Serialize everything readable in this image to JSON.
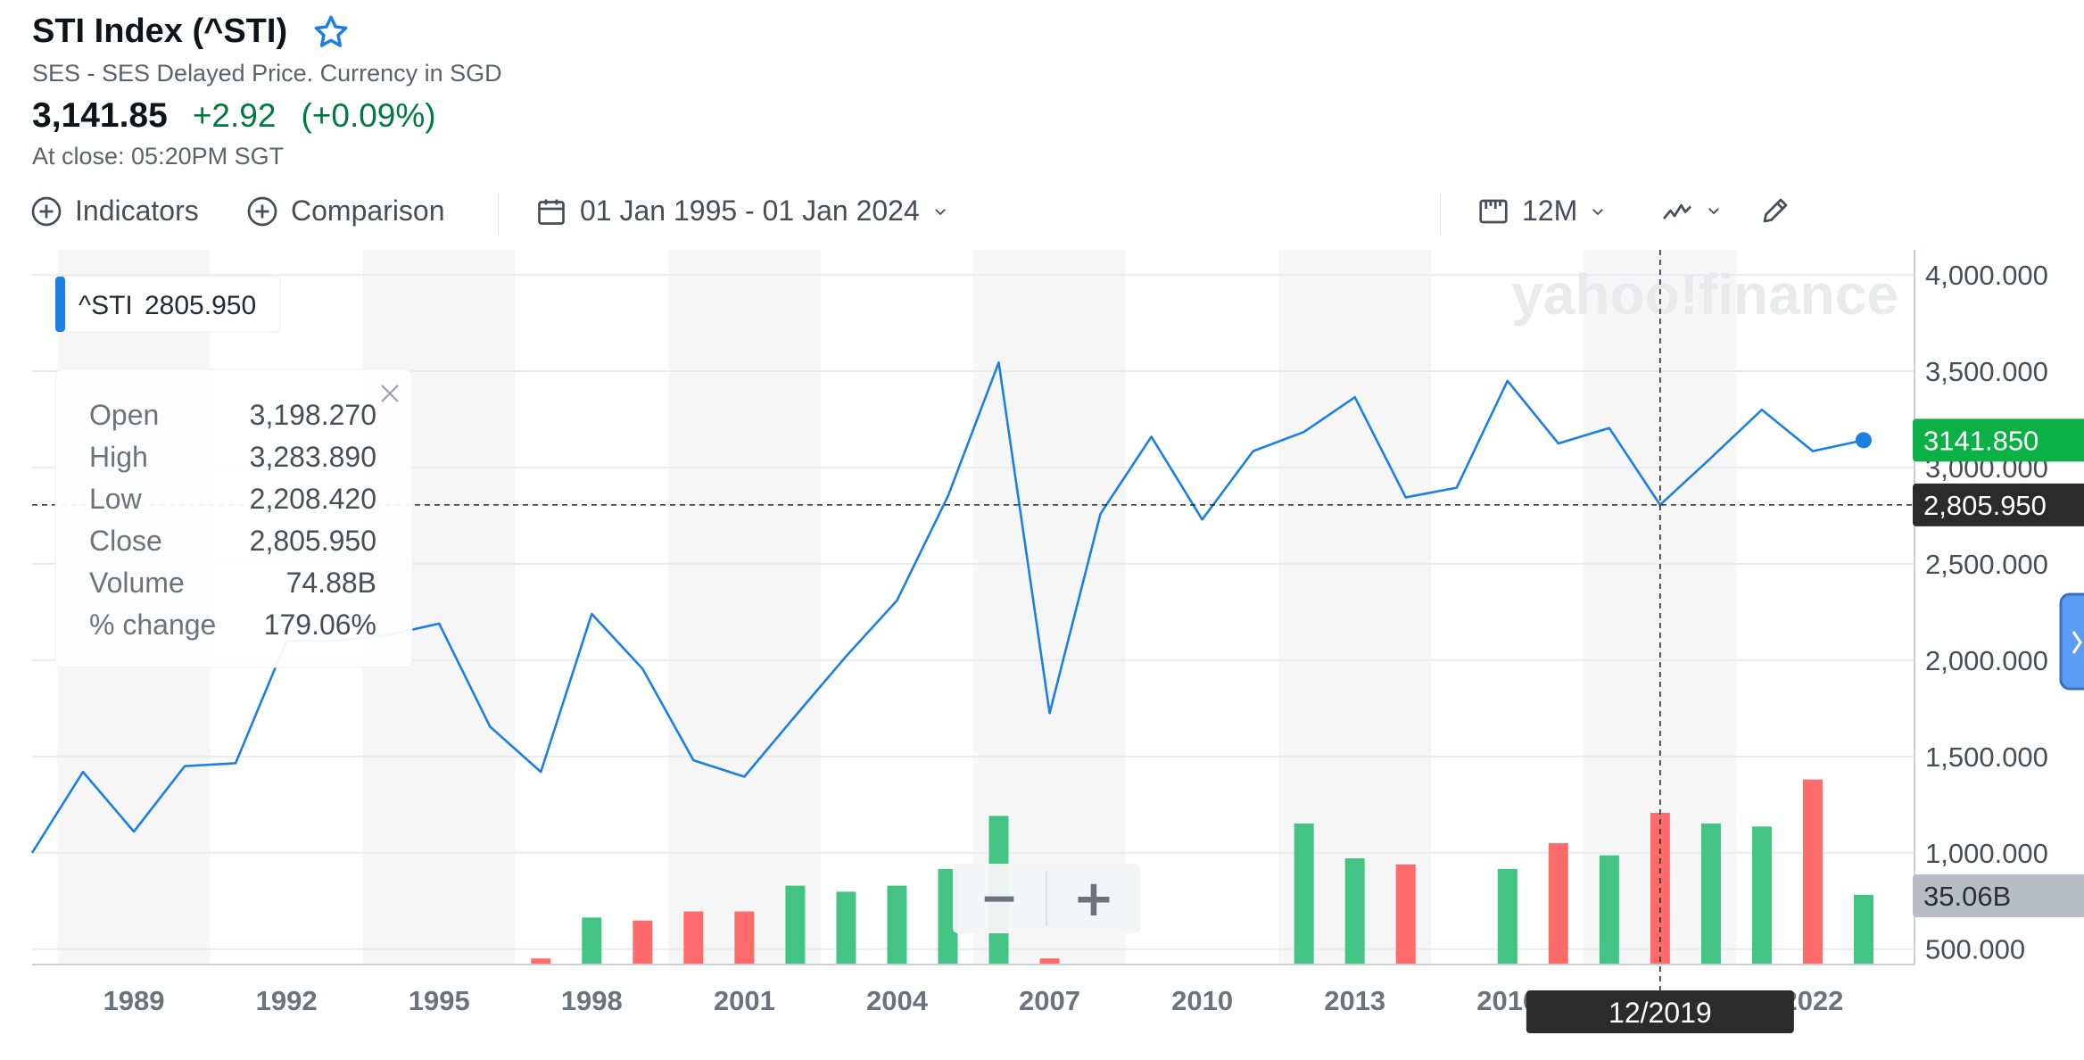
{
  "header": {
    "title": "STI Index (^STI)",
    "subtitle": "SES - SES Delayed Price. Currency in SGD",
    "price": "3,141.85",
    "change": "+2.92",
    "change_pct": "(+0.09%)",
    "close_time": "At close: 05:20PM SGT"
  },
  "toolbar": {
    "indicators_label": "Indicators",
    "comparison_label": "Comparison",
    "date_range_label": "01 Jan 1995 - 01 Jan 2024",
    "interval_label": "12M"
  },
  "colors": {
    "line": "#1b7fe3",
    "up": "#43c484",
    "down": "#ff6b6b",
    "current_badge": "#0bb047",
    "crosshair_badge": "#2b2b2b",
    "volume_badge": "#b8bcc4"
  },
  "legend": {
    "symbol": "^STI",
    "value": "2805.950"
  },
  "tooltip": {
    "rows": [
      {
        "label": "Open",
        "value": "3,198.270"
      },
      {
        "label": "High",
        "value": "3,283.890"
      },
      {
        "label": "Low",
        "value": "2,208.420"
      },
      {
        "label": "Close",
        "value": "2,805.950"
      },
      {
        "label": "Volume",
        "value": "74.88B"
      },
      {
        "label": "% change",
        "value": "179.06%"
      }
    ]
  },
  "badges": {
    "current": "3141.850",
    "crosshair": "2,805.950",
    "volume": "35.06B",
    "crosshair_date": "12/2019"
  },
  "watermark": "yahoo!finance",
  "zoom": {
    "minus": "−",
    "plus": "+"
  },
  "chart_data": {
    "type": "line",
    "x_tick_labels": [
      "1989",
      "1992",
      "1995",
      "1998",
      "2001",
      "2004",
      "2007",
      "2010",
      "2013",
      "2016",
      "2019",
      "2022"
    ],
    "y_tick_labels": [
      "4,000.000",
      "3,500.000",
      "3,000.000",
      "2,500.000",
      "2,000.000",
      "1,500.000",
      "1,000.000",
      "500.000"
    ],
    "ylim": [
      420,
      4130
    ],
    "xlim": [
      1987.0,
      2024.0
    ],
    "series": [
      {
        "x": [
          1987.0,
          1988.0,
          1989.0,
          1990.0,
          1991.0,
          1992.0,
          1993.0,
          1994.0,
          1995.0,
          1996.0,
          1997.0,
          1998.0,
          1999.0,
          2000.0,
          2001.0,
          2002.0,
          2003.0,
          2004.0,
          2005.0,
          2006.0,
          2007.0,
          2008.0,
          2009.0,
          2010.0,
          2011.0,
          2012.0,
          2013.0,
          2014.0,
          2015.0,
          2016.0,
          2017.0,
          2018.0,
          2019.0,
          2020.0,
          2021.0,
          2022.0,
          2023.0
        ],
        "values": [
          1000,
          1420,
          1110,
          1450,
          1465,
          2100,
          2100,
          2130,
          2190,
          1655,
          1420,
          2240,
          1955,
          1480,
          1395,
          1710,
          2020,
          2310,
          2850,
          3545,
          1725,
          2760,
          3160,
          2730,
          3085,
          3185,
          3365,
          2845,
          2895,
          3450,
          3125,
          3205,
          2806,
          3050,
          3300,
          3085,
          3141.85
        ]
      }
    ],
    "volume_bars": [
      {
        "x": 1997.0,
        "value": 0.04,
        "dir": "down"
      },
      {
        "x": 1998.0,
        "value": 0.31,
        "dir": "up"
      },
      {
        "x": 1999.0,
        "value": 0.29,
        "dir": "down"
      },
      {
        "x": 2000.0,
        "value": 0.35,
        "dir": "down"
      },
      {
        "x": 2001.0,
        "value": 0.35,
        "dir": "down"
      },
      {
        "x": 2002.0,
        "value": 0.52,
        "dir": "up"
      },
      {
        "x": 2003.0,
        "value": 0.48,
        "dir": "up"
      },
      {
        "x": 2004.0,
        "value": 0.52,
        "dir": "up"
      },
      {
        "x": 2005.0,
        "value": 0.63,
        "dir": "up"
      },
      {
        "x": 2006.0,
        "value": 0.98,
        "dir": "up"
      },
      {
        "x": 2007.0,
        "value": 0.04,
        "dir": "down"
      },
      {
        "x": 2012.0,
        "value": 0.93,
        "dir": "up"
      },
      {
        "x": 2013.0,
        "value": 0.7,
        "dir": "up"
      },
      {
        "x": 2014.0,
        "value": 0.66,
        "dir": "down"
      },
      {
        "x": 2016.0,
        "value": 0.63,
        "dir": "up"
      },
      {
        "x": 2017.0,
        "value": 0.8,
        "dir": "down"
      },
      {
        "x": 2018.0,
        "value": 0.72,
        "dir": "up"
      },
      {
        "x": 2019.0,
        "value": 1.0,
        "dir": "down"
      },
      {
        "x": 2020.0,
        "value": 0.93,
        "dir": "up"
      },
      {
        "x": 2021.0,
        "value": 0.91,
        "dir": "up"
      },
      {
        "x": 2022.0,
        "value": 1.22,
        "dir": "down"
      },
      {
        "x": 2023.0,
        "value": 0.46,
        "dir": "up"
      }
    ],
    "grid": true,
    "crosshair": {
      "x": 2019.0,
      "y": 2805.95
    }
  }
}
